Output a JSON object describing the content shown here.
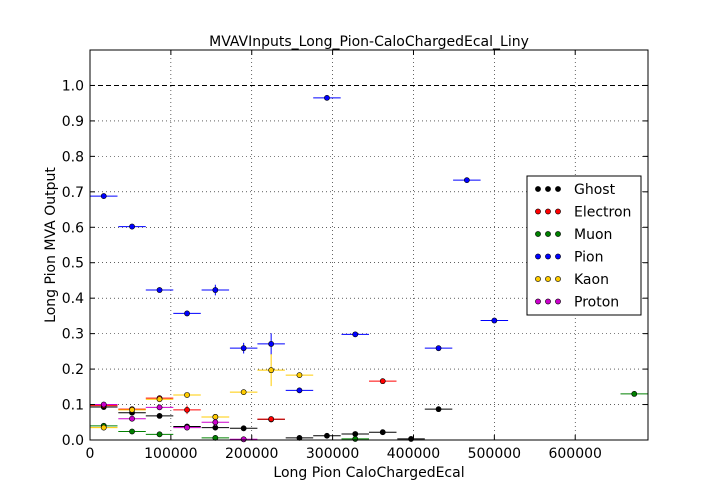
{
  "chart_data": {
    "type": "scatter",
    "title": "MVAVInputs_Long_Pion-CaloChargedEcal_Liny",
    "xlabel": "Long Pion CaloChargedEcal",
    "ylabel": "Long Pion MVA Output",
    "xlim": [
      0,
      690000
    ],
    "ylim": [
      0,
      1.1
    ],
    "xticks": [
      0,
      100000,
      200000,
      300000,
      400000,
      500000,
      600000
    ],
    "xtick_labels": [
      "0",
      "100000",
      "200000",
      "300000",
      "400000",
      "500000",
      "600000"
    ],
    "yticks": [
      0.0,
      0.1,
      0.2,
      0.3,
      0.4,
      0.5,
      0.6,
      0.7,
      0.8,
      0.9,
      1.0
    ],
    "ytick_labels": [
      "0.0",
      "0.1",
      "0.2",
      "0.3",
      "0.4",
      "0.5",
      "0.6",
      "0.7",
      "0.8",
      "0.9",
      "1.0"
    ],
    "grid": true,
    "reference_line": 1.0,
    "legend_position": "right",
    "series": [
      {
        "name": "Ghost",
        "color": "#000000",
        "points": [
          {
            "x": 17000,
            "y": 0.093,
            "xerr": 17000,
            "yerr": 0.004
          },
          {
            "x": 52000,
            "y": 0.077,
            "xerr": 17000,
            "yerr": 0.004
          },
          {
            "x": 86000,
            "y": 0.068,
            "xerr": 17000,
            "yerr": 0.004
          },
          {
            "x": 120000,
            "y": 0.038,
            "xerr": 17000,
            "yerr": 0.003
          },
          {
            "x": 155000,
            "y": 0.035,
            "xerr": 17000,
            "yerr": 0.003
          },
          {
            "x": 190000,
            "y": 0.033,
            "xerr": 17000,
            "yerr": 0.003
          },
          {
            "x": 224000,
            "y": 0.058,
            "xerr": 17000,
            "yerr": 0.004
          },
          {
            "x": 259000,
            "y": 0.006,
            "xerr": 17000,
            "yerr": 0.002
          },
          {
            "x": 293000,
            "y": 0.012,
            "xerr": 17000,
            "yerr": 0.002
          },
          {
            "x": 328000,
            "y": 0.017,
            "xerr": 17000,
            "yerr": 0.002
          },
          {
            "x": 362000,
            "y": 0.022,
            "xerr": 17000,
            "yerr": 0.002
          },
          {
            "x": 397000,
            "y": 0.003,
            "xerr": 17000,
            "yerr": 0.002
          },
          {
            "x": 431000,
            "y": 0.087,
            "xerr": 17000,
            "yerr": 0.003
          }
        ]
      },
      {
        "name": "Electron",
        "color": "#ff0000",
        "points": [
          {
            "x": 17000,
            "y": 0.097,
            "xerr": 17000,
            "yerr": 0.004
          },
          {
            "x": 52000,
            "y": 0.087,
            "xerr": 17000,
            "yerr": 0.005
          },
          {
            "x": 86000,
            "y": 0.118,
            "xerr": 17000,
            "yerr": 0.006
          },
          {
            "x": 120000,
            "y": 0.085,
            "xerr": 17000,
            "yerr": 0.012
          },
          {
            "x": 155000,
            "y": 0.065,
            "xerr": 17000,
            "yerr": 0.005
          },
          {
            "x": 224000,
            "y": 0.059,
            "xerr": 17000,
            "yerr": 0.005
          },
          {
            "x": 362000,
            "y": 0.166,
            "xerr": 17000,
            "yerr": 0.006
          }
        ]
      },
      {
        "name": "Muon",
        "color": "#008000",
        "points": [
          {
            "x": 17000,
            "y": 0.04,
            "xerr": 17000,
            "yerr": 0.003
          },
          {
            "x": 52000,
            "y": 0.024,
            "xerr": 17000,
            "yerr": 0.003
          },
          {
            "x": 86000,
            "y": 0.016,
            "xerr": 17000,
            "yerr": 0.003
          },
          {
            "x": 155000,
            "y": 0.006,
            "xerr": 17000,
            "yerr": 0.002
          },
          {
            "x": 328000,
            "y": 0.003,
            "xerr": 17000,
            "yerr": 0.002
          },
          {
            "x": 673000,
            "y": 0.13,
            "xerr": 17000,
            "yerr": 0.004
          }
        ]
      },
      {
        "name": "Pion",
        "color": "#0000ff",
        "points": [
          {
            "x": 17000,
            "y": 0.688,
            "xerr": 17000,
            "yerr": 0.003
          },
          {
            "x": 52000,
            "y": 0.602,
            "xerr": 17000,
            "yerr": 0.004
          },
          {
            "x": 86000,
            "y": 0.423,
            "xerr": 17000,
            "yerr": 0.004
          },
          {
            "x": 120000,
            "y": 0.357,
            "xerr": 17000,
            "yerr": 0.004
          },
          {
            "x": 155000,
            "y": 0.423,
            "xerr": 17000,
            "yerr": 0.015
          },
          {
            "x": 190000,
            "y": 0.259,
            "xerr": 17000,
            "yerr": 0.015
          },
          {
            "x": 224000,
            "y": 0.271,
            "xerr": 17000,
            "yerr": 0.03
          },
          {
            "x": 259000,
            "y": 0.14,
            "xerr": 17000,
            "yerr": 0.004
          },
          {
            "x": 293000,
            "y": 0.965,
            "xerr": 17000,
            "yerr": 0.003
          },
          {
            "x": 328000,
            "y": 0.298,
            "xerr": 17000,
            "yerr": 0.004
          },
          {
            "x": 431000,
            "y": 0.259,
            "xerr": 17000,
            "yerr": 0.004
          },
          {
            "x": 466000,
            "y": 0.733,
            "xerr": 17000,
            "yerr": 0.003
          },
          {
            "x": 500000,
            "y": 0.337,
            "xerr": 17000,
            "yerr": 0.004
          }
        ]
      },
      {
        "name": "Kaon",
        "color": "#ffcc00",
        "points": [
          {
            "x": 17000,
            "y": 0.035,
            "xerr": 17000,
            "yerr": 0.003
          },
          {
            "x": 52000,
            "y": 0.085,
            "xerr": 17000,
            "yerr": 0.004
          },
          {
            "x": 86000,
            "y": 0.115,
            "xerr": 17000,
            "yerr": 0.005
          },
          {
            "x": 120000,
            "y": 0.127,
            "xerr": 17000,
            "yerr": 0.005
          },
          {
            "x": 155000,
            "y": 0.065,
            "xerr": 17000,
            "yerr": 0.005
          },
          {
            "x": 190000,
            "y": 0.135,
            "xerr": 17000,
            "yerr": 0.005
          },
          {
            "x": 224000,
            "y": 0.197,
            "xerr": 17000,
            "yerr": 0.045
          },
          {
            "x": 259000,
            "y": 0.183,
            "xerr": 17000,
            "yerr": 0.005
          }
        ]
      },
      {
        "name": "Proton",
        "color": "#cc00cc",
        "points": [
          {
            "x": 17000,
            "y": 0.1,
            "xerr": 17000,
            "yerr": 0.004
          },
          {
            "x": 52000,
            "y": 0.06,
            "xerr": 17000,
            "yerr": 0.005
          },
          {
            "x": 86000,
            "y": 0.092,
            "xerr": 17000,
            "yerr": 0.006
          },
          {
            "x": 120000,
            "y": 0.035,
            "xerr": 17000,
            "yerr": 0.005
          },
          {
            "x": 155000,
            "y": 0.05,
            "xerr": 17000,
            "yerr": 0.01
          },
          {
            "x": 190000,
            "y": 0.002,
            "xerr": 17000,
            "yerr": 0.002
          }
        ]
      }
    ]
  }
}
